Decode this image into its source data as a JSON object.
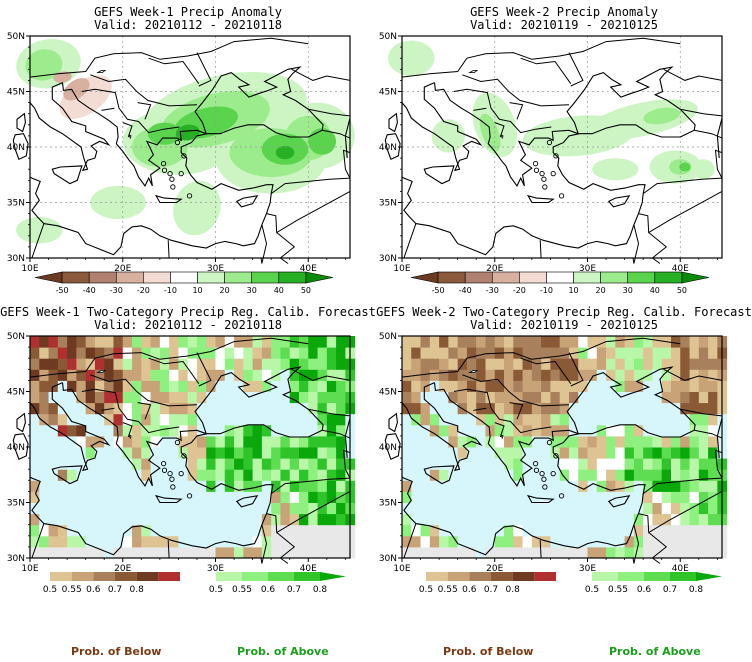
{
  "panels": [
    {
      "id": "p1",
      "line1": "GEFS Week-1 Precip Anomaly",
      "line2": "Valid: 20210112 - 20210118",
      "kind": "anomaly"
    },
    {
      "id": "p2",
      "line1": "GEFS Week-2 Precip Anomaly",
      "line2": "Valid: 20210119 - 20210125",
      "kind": "anomaly"
    },
    {
      "id": "p3",
      "line1": "GEFS Week-1 Two-Category Precip Reg. Calib. Forecast",
      "line2": "Valid: 20210112 - 20210118",
      "kind": "prob",
      "seed": 11
    },
    {
      "id": "p4",
      "line1": "GEFS Week-2 Two-Category Precip Reg. Calib. Forecast",
      "line2": "Valid: 20210119 - 20210125",
      "kind": "prob",
      "seed": 29
    }
  ],
  "axes": {
    "lat_labels": [
      "30N",
      "35N",
      "40N",
      "45N",
      "50N"
    ],
    "lon_labels": [
      "10E",
      "20E",
      "30E",
      "40E"
    ]
  },
  "anomaly_colorbar": {
    "ticks": [
      "-50",
      "-40",
      "-30",
      "-20",
      "-10",
      "10",
      "20",
      "30",
      "40",
      "50"
    ],
    "colors": [
      "#6b3a22",
      "#8b5a3c",
      "#b08070",
      "#d8b0a0",
      "#f3dcd3",
      "#ffffff",
      "#cdf5c4",
      "#9ceb8c",
      "#5ad44c",
      "#27b024",
      "#0a8a0a"
    ]
  },
  "prob_colorbar_below": {
    "ticks": [
      "0.5",
      "0.55",
      "0.6",
      "0.7",
      "0.8"
    ],
    "colors": [
      "#dec393",
      "#c9a378",
      "#a8805c",
      "#8a5a36",
      "#6f3a22",
      "#b03030"
    ]
  },
  "prob_colorbar_above": {
    "ticks": [
      "0.5",
      "0.55",
      "0.6",
      "0.7",
      "0.8"
    ],
    "colors": [
      "#b8f7a8",
      "#8ef07e",
      "#5edc52",
      "#2ec42a",
      "#0aa80a"
    ]
  },
  "legend": {
    "below": "Prob. of Below",
    "above": "Prob. of Above"
  },
  "colors": {
    "sea": "#d6f6fb",
    "land_neutral": "#f5f5f5",
    "coast": "#000000",
    "grid": "#999999"
  }
}
